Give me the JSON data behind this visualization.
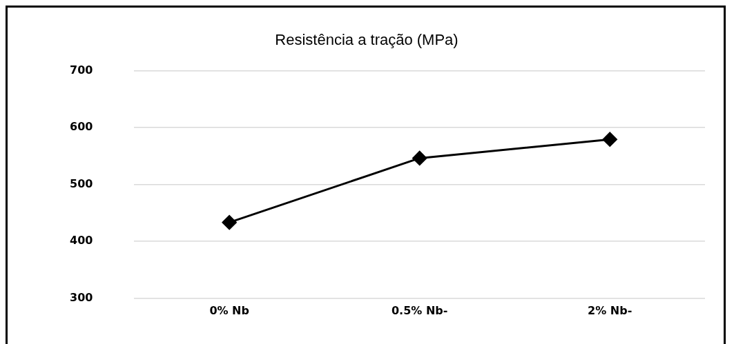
{
  "chart_data": {
    "type": "line",
    "title": "Resistência a tração (MPa)",
    "categories": [
      "0% Nb",
      "0.5% Nb-",
      "2% Nb-"
    ],
    "series": [
      {
        "color": "#000000",
        "values": [
          433,
          546,
          579
        ]
      }
    ],
    "ylim": [
      300,
      700
    ],
    "yticks": [
      300,
      400,
      500,
      600,
      700
    ],
    "grid": "y",
    "legend": false,
    "marker": "diamond",
    "line_style": "solid"
  }
}
